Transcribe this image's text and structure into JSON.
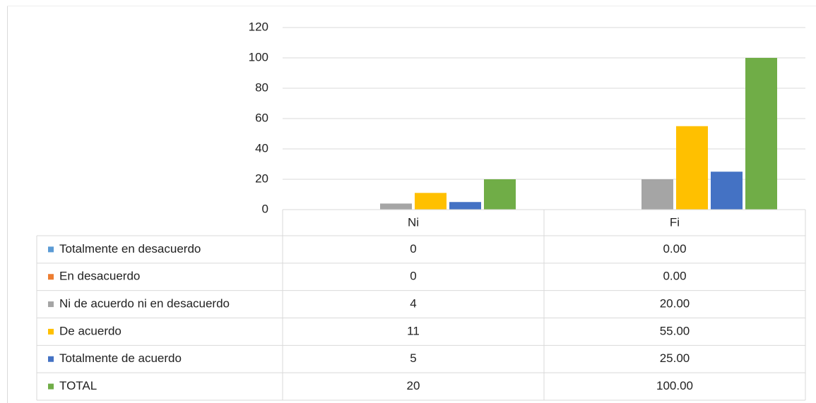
{
  "chart_data": {
    "type": "bar",
    "categories": [
      "Ni",
      "Fi"
    ],
    "ylim": [
      0,
      120
    ],
    "yticks": [
      0,
      20,
      40,
      60,
      80,
      100,
      120
    ],
    "grid": true,
    "series": [
      {
        "name": "Totalmente en desacuerdo",
        "color": "#5b9bd5",
        "values": [
          0,
          0
        ],
        "value_labels": [
          "0",
          "0.00"
        ]
      },
      {
        "name": "En desacuerdo",
        "color": "#ed7d31",
        "values": [
          0,
          0
        ],
        "value_labels": [
          "0",
          "0.00"
        ]
      },
      {
        "name": "Ni de acuerdo ni en desacuerdo",
        "color": "#a5a5a5",
        "values": [
          4,
          20
        ],
        "value_labels": [
          "4",
          "20.00"
        ]
      },
      {
        "name": "De acuerdo",
        "color": "#ffc000",
        "values": [
          11,
          55
        ],
        "value_labels": [
          "11",
          "55.00"
        ]
      },
      {
        "name": "Totalmente de acuerdo",
        "color": "#4472c4",
        "values": [
          5,
          25
        ],
        "value_labels": [
          "5",
          "25.00"
        ]
      },
      {
        "name": "TOTAL",
        "color": "#70ad47",
        "values": [
          20,
          100
        ],
        "value_labels": [
          "20",
          "100.00"
        ]
      }
    ]
  }
}
